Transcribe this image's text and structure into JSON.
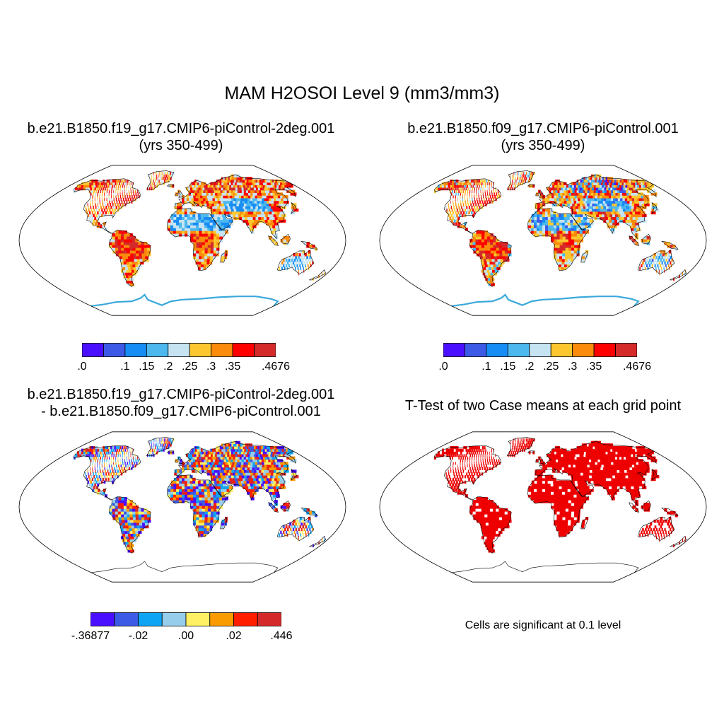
{
  "title": "MAM H2OSOI Level 9 (mm3/mm3)",
  "panels": [
    {
      "id": "case1",
      "title_line1": "b.e21.B1850.f19_g17.CMIP6-piControl-2deg.001",
      "title_line2": "(yrs 350-499)",
      "field": "case1",
      "colorbar": "abs"
    },
    {
      "id": "case2",
      "title_line1": "b.e21.B1850.f09_g17.CMIP6-piControl.001",
      "title_line2": "(yrs 350-499)",
      "field": "case2",
      "colorbar": "abs"
    },
    {
      "id": "diff",
      "title_line1": "b.e21.B1850.f19_g17.CMIP6-piControl-2deg.001",
      "title_line2": "- b.e21.B1850.f09_g17.CMIP6-piControl.001",
      "field": "diff",
      "colorbar": "diff"
    },
    {
      "id": "ttest",
      "title_line1": "T-Test of two Case means at each grid point",
      "title_line2": "",
      "field": "ttest",
      "colorbar": "none"
    }
  ],
  "colorbars": {
    "abs": {
      "colors": [
        "#4B0FFF",
        "#3C5AE6",
        "#168CF5",
        "#4CB8EE",
        "#C6E3F2",
        "#FDC82F",
        "#FA8B0B",
        "#FF0000",
        "#D42A2A"
      ],
      "labels": [
        ".0",
        ".1",
        ".15",
        ".2",
        ".25",
        ".3",
        ".35",
        ".4676"
      ],
      "label_boxes": [
        0,
        2,
        3,
        4,
        5,
        6,
        7,
        9
      ]
    },
    "diff": {
      "colors": [
        "#4B0FFF",
        "#3C5AE6",
        "#0FA5F5",
        "#96CDEB",
        "#FFF064",
        "#FA9B00",
        "#FF1E00",
        "#D42A2A"
      ],
      "labels": [
        "-.36877",
        "-.02",
        ".00",
        ".02",
        ".446"
      ],
      "label_boxes": [
        0,
        2,
        4,
        6,
        8
      ]
    }
  },
  "significance_note": "Cells are significant at 0.1 level",
  "significance_color": "#EE0000",
  "map": {
    "projection": "robinson",
    "coastline_color": "#000000",
    "antarctic_coast_color_abs": "#3AA8DC"
  }
}
